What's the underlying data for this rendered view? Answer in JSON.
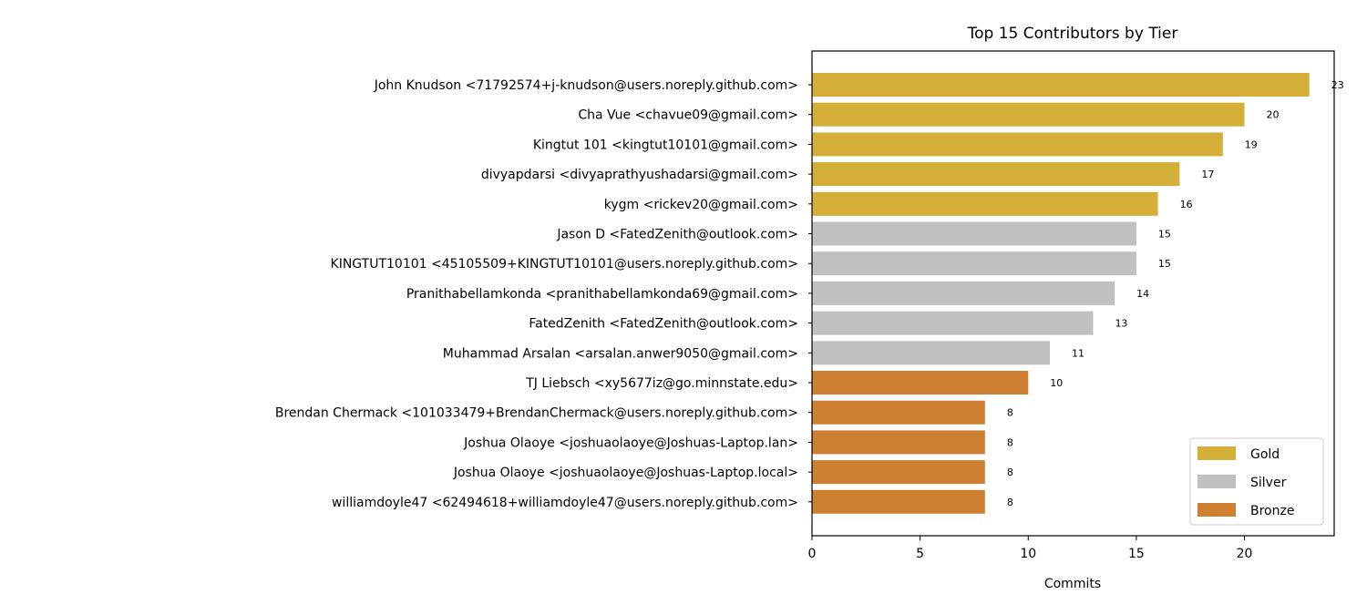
{
  "chart_data": {
    "type": "bar",
    "orientation": "horizontal",
    "title": "Top 15 Contributors by Tier",
    "xlabel": "Commits",
    "ylabel": "",
    "xlim": [
      0,
      24.15
    ],
    "xticks": [
      0,
      5,
      10,
      15,
      20
    ],
    "grid": false,
    "legend_position": "bottom-right",
    "tiers": [
      {
        "name": "Gold",
        "color": "#d4af37"
      },
      {
        "name": "Silver",
        "color": "#c0c0c0"
      },
      {
        "name": "Bronze",
        "color": "#cd7f32"
      }
    ],
    "categories": [
      "John Knudson <71792574+j-knudson@users.noreply.github.com>",
      "Cha Vue <chavue09@gmail.com>",
      "Kingtut 101 <kingtut10101@gmail.com>",
      "divyapdarsi <divyaprathyushadarsi@gmail.com>",
      "kygm <rickev20@gmail.com>",
      "Jason D <FatedZenith@outlook.com>",
      "KINGTUT10101 <45105509+KINGTUT10101@users.noreply.github.com>",
      "Pranithabellamkonda <pranithabellamkonda69@gmail.com>",
      "FatedZenith <FatedZenith@outlook.com>",
      "Muhammad Arsalan <arsalan.anwer9050@gmail.com>",
      "TJ Liebsch <xy5677iz@go.minnstate.edu>",
      "Brendan Chermack <101033479+BrendanChermack@users.noreply.github.com>",
      "Joshua Olaoye <joshuaolaoye@Joshuas-Laptop.lan>",
      "Joshua Olaoye <joshuaolaoye@Joshuas-Laptop.local>",
      "williamdoyle47 <62494618+williamdoyle47@users.noreply.github.com>"
    ],
    "values": [
      23,
      20,
      19,
      17,
      16,
      15,
      15,
      14,
      13,
      11,
      10,
      8,
      8,
      8,
      8
    ],
    "bar_tiers": [
      "Gold",
      "Gold",
      "Gold",
      "Gold",
      "Gold",
      "Silver",
      "Silver",
      "Silver",
      "Silver",
      "Silver",
      "Bronze",
      "Bronze",
      "Bronze",
      "Bronze",
      "Bronze"
    ]
  }
}
